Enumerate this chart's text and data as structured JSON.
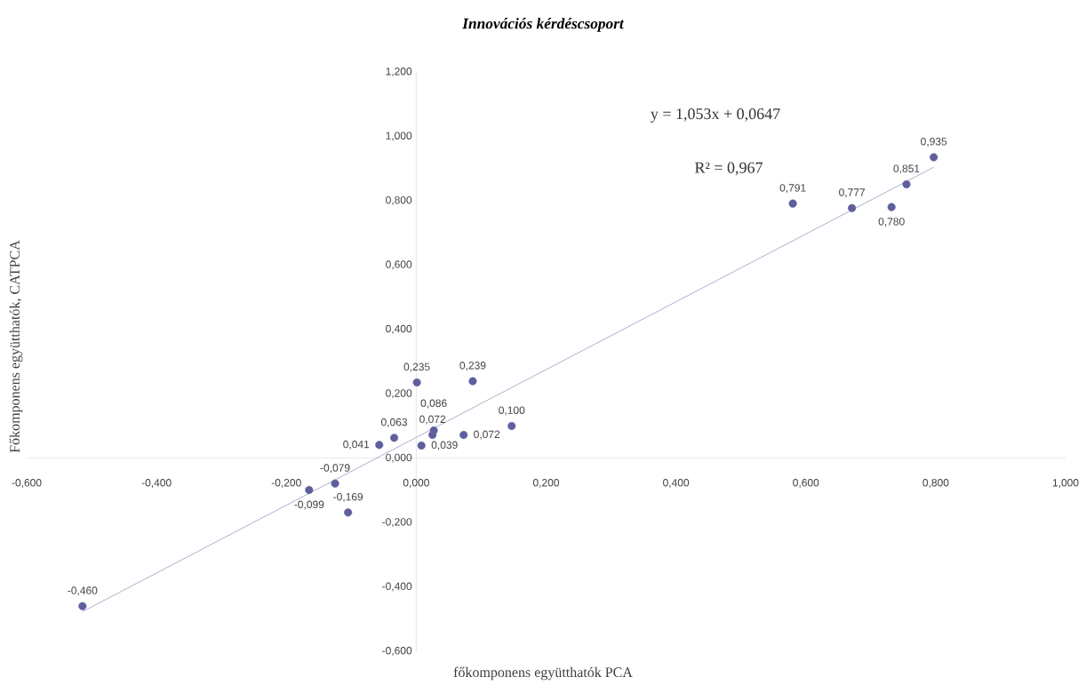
{
  "chart_data": {
    "type": "scatter",
    "title": "Innovációs kérdéscsoport",
    "xlabel": "főkomponens együtthatók PCA",
    "ylabel": "Főkomponens együtthatók, CATPCA",
    "annotations": [
      "y = 1,053x + 0,0647",
      "R² = 0,967"
    ],
    "xlim": [
      -0.6,
      1.0
    ],
    "ylim": [
      -0.6,
      1.2
    ],
    "xticks": [
      {
        "value": -0.6,
        "label": "-0,600"
      },
      {
        "value": -0.4,
        "label": "-0,400"
      },
      {
        "value": -0.2,
        "label": "-0,200"
      },
      {
        "value": 0,
        "label": "0,000"
      },
      {
        "value": 0.2,
        "label": "0,200"
      },
      {
        "value": 0.4,
        "label": "0,400"
      },
      {
        "value": 0.6,
        "label": "0,600"
      },
      {
        "value": 0.8,
        "label": "0,800"
      },
      {
        "value": 1.0,
        "label": "1,000"
      }
    ],
    "yticks": [
      {
        "value": -0.6,
        "label": "-0,600"
      },
      {
        "value": -0.4,
        "label": "-0,400"
      },
      {
        "value": -0.2,
        "label": "-0,200"
      },
      {
        "value": 0,
        "label": "0,000"
      },
      {
        "value": 0.2,
        "label": "0,200"
      },
      {
        "value": 0.4,
        "label": "0,400"
      },
      {
        "value": 0.6,
        "label": "0,600"
      },
      {
        "value": 0.8,
        "label": "0,800"
      },
      {
        "value": 1.0,
        "label": "1,000"
      },
      {
        "value": 1.2,
        "label": "1,200"
      }
    ],
    "marker": "circle",
    "legend": false,
    "series": [
      {
        "type": "scatter",
        "color": "#5e5f9c",
        "x": [
          -0.514,
          -0.165,
          -0.125,
          -0.105,
          -0.057,
          -0.034,
          0.001,
          0.008,
          0.025,
          0.027,
          0.073,
          0.087,
          0.147,
          0.58,
          0.671,
          0.732,
          0.755,
          0.797
        ],
        "values": [
          -0.46,
          -0.099,
          -0.079,
          -0.169,
          0.041,
          0.063,
          0.235,
          0.039,
          0.072,
          0.086,
          0.072,
          0.239,
          0.1,
          0.791,
          0.777,
          0.78,
          0.851,
          0.935
        ],
        "value_labels": [
          "-0,460",
          "-0,099",
          "-0,079",
          "-0,169",
          "0,041",
          "0,063",
          "0,235",
          "0,039",
          "0,072",
          "0,086",
          "0,072",
          "0,239",
          "0,100",
          "0,791",
          "0,777",
          "0,780",
          "0,851",
          "0,935"
        ]
      },
      {
        "type": "line",
        "color": "#6a64a4",
        "x": [
          -0.514,
          0.797
        ],
        "values": [
          -0.477,
          0.904
        ],
        "marker": "none",
        "line_style": "solid"
      }
    ]
  }
}
